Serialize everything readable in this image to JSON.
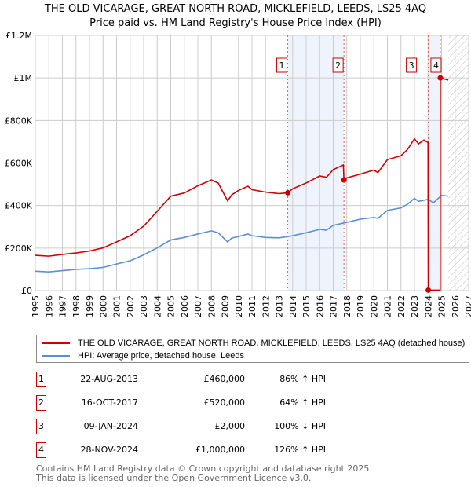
{
  "chart_data": {
    "type": "line",
    "title": "THE OLD VICARAGE, GREAT NORTH ROAD, MICKLEFIELD, LEEDS, LS25 4AQ",
    "subtitle": "Price paid vs. HM Land Registry's House Price Index (HPI)",
    "xlim": [
      1995,
      2027
    ],
    "ylim": [
      0,
      1200000
    ],
    "x_ticks": [
      "1995",
      "1996",
      "1997",
      "1998",
      "1999",
      "2000",
      "2001",
      "2002",
      "2003",
      "2004",
      "2005",
      "2006",
      "2007",
      "2008",
      "2009",
      "2010",
      "2011",
      "2012",
      "2013",
      "2014",
      "2015",
      "2016",
      "2017",
      "2018",
      "2019",
      "2020",
      "2021",
      "2022",
      "2023",
      "2024",
      "2025",
      "2026",
      "2027"
    ],
    "y_ticks": [
      {
        "v": 0,
        "label": "£0"
      },
      {
        "v": 200000,
        "label": "£200K"
      },
      {
        "v": 400000,
        "label": "£400K"
      },
      {
        "v": 600000,
        "label": "£600K"
      },
      {
        "v": 800000,
        "label": "£800K"
      },
      {
        "v": 1000000,
        "label": "£1M"
      },
      {
        "v": 1200000,
        "label": "£1.2M"
      }
    ],
    "series": [
      {
        "name": "THE OLD VICARAGE, GREAT NORTH ROAD, MICKLEFIELD, LEEDS, LS25 4AQ (detached house)",
        "color": "#cc0000",
        "points": [
          [
            1995,
            166000
          ],
          [
            1996,
            162000
          ],
          [
            1997,
            170000
          ],
          [
            1998,
            177000
          ],
          [
            1999,
            186000
          ],
          [
            2000,
            201000
          ],
          [
            2001,
            229000
          ],
          [
            2002,
            258000
          ],
          [
            2003,
            303000
          ],
          [
            2004,
            373000
          ],
          [
            2005,
            444000
          ],
          [
            2006,
            459000
          ],
          [
            2007,
            493000
          ],
          [
            2008,
            520000
          ],
          [
            2008.5,
            506000
          ],
          [
            2009.2,
            422000
          ],
          [
            2009.5,
            450000
          ],
          [
            2010,
            471000
          ],
          [
            2010.7,
            491000
          ],
          [
            2011,
            475000
          ],
          [
            2012,
            463000
          ],
          [
            2013,
            456000
          ],
          [
            2013.64,
            460000
          ],
          [
            2014,
            479000
          ],
          [
            2015,
            506000
          ],
          [
            2016,
            539000
          ],
          [
            2016.5,
            533000
          ],
          [
            2017,
            569000
          ],
          [
            2017.75,
            591000
          ],
          [
            2017.79,
            520000
          ],
          [
            2018,
            530000
          ],
          [
            2019,
            548000
          ],
          [
            2020,
            567000
          ],
          [
            2020.3,
            555000
          ],
          [
            2021,
            616000
          ],
          [
            2022,
            634000
          ],
          [
            2022.5,
            665000
          ],
          [
            2023,
            714000
          ],
          [
            2023.3,
            690000
          ],
          [
            2023.7,
            708000
          ],
          [
            2024.0,
            696000
          ],
          [
            2024.02,
            2000
          ],
          [
            2024.9,
            2000
          ],
          [
            2024.91,
            1000000
          ],
          [
            2025.5,
            990000
          ]
        ]
      },
      {
        "name": "HPI: Average price, detached house, Leeds",
        "color": "#5b8fd4",
        "points": [
          [
            1995,
            91000
          ],
          [
            1996,
            88000
          ],
          [
            1997,
            94000
          ],
          [
            1998,
            100000
          ],
          [
            1999,
            103000
          ],
          [
            2000,
            109000
          ],
          [
            2001,
            125000
          ],
          [
            2002,
            140000
          ],
          [
            2003,
            168000
          ],
          [
            2004,
            201000
          ],
          [
            2005,
            238000
          ],
          [
            2006,
            250000
          ],
          [
            2007,
            266000
          ],
          [
            2008,
            281000
          ],
          [
            2008.5,
            272000
          ],
          [
            2009.2,
            229000
          ],
          [
            2009.5,
            247000
          ],
          [
            2010,
            254000
          ],
          [
            2010.7,
            266000
          ],
          [
            2011,
            258000
          ],
          [
            2012,
            250000
          ],
          [
            2013,
            248000
          ],
          [
            2013.64,
            254000
          ],
          [
            2014,
            258000
          ],
          [
            2015,
            272000
          ],
          [
            2016,
            288000
          ],
          [
            2016.5,
            284000
          ],
          [
            2017,
            307000
          ],
          [
            2018,
            321000
          ],
          [
            2019,
            336000
          ],
          [
            2020,
            344000
          ],
          [
            2020.3,
            340000
          ],
          [
            2021,
            377000
          ],
          [
            2022,
            389000
          ],
          [
            2022.5,
            407000
          ],
          [
            2023,
            434000
          ],
          [
            2023.3,
            420000
          ],
          [
            2024,
            429000
          ],
          [
            2024.4,
            413000
          ],
          [
            2025,
            448000
          ],
          [
            2025.5,
            444000
          ]
        ]
      }
    ],
    "sales": [
      {
        "n": "1",
        "x": 2013.64,
        "y": 460000,
        "date": "22-AUG-2013",
        "price": "£460,000",
        "hpi": "86% ↑ HPI"
      },
      {
        "n": "2",
        "x": 2017.79,
        "y": 520000,
        "date": "16-OCT-2017",
        "price": "£520,000",
        "hpi": "64% ↑ HPI"
      },
      {
        "n": "3",
        "x": 2024.02,
        "y": 2000,
        "date": "09-JAN-2024",
        "price": "£2,000",
        "hpi": "100% ↓ HPI"
      },
      {
        "n": "4",
        "x": 2024.91,
        "y": 1000000,
        "date": "28-NOV-2024",
        "price": "£1,000,000",
        "hpi": "126% ↑ HPI"
      }
    ],
    "forecast_start": 2025.5,
    "legend_position": "below"
  },
  "footer": [
    "Contains HM Land Registry data © Crown copyright and database right 2025.",
    "This data is licensed under the Open Government Licence v3.0."
  ]
}
